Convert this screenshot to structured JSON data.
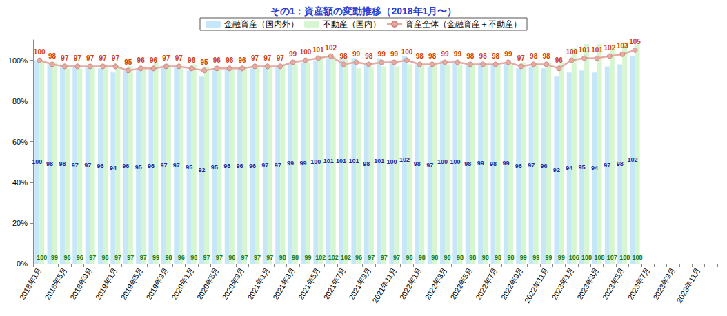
{
  "chart_data": {
    "type": "bar",
    "title": "その1：資産額の変動推移（2018年1月〜）",
    "categories": [
      "2018年1月",
      null,
      "2018年5月",
      null,
      "2018年9月",
      null,
      "2019年1月",
      null,
      "2019年5月",
      null,
      "2019年9月",
      null,
      "2020年1月",
      null,
      "2020年5月",
      null,
      "2020年9月",
      null,
      "2021年1月",
      null,
      "2021年3月",
      null,
      "2021年5月",
      null,
      "2021年7月",
      null,
      "2021年9月",
      null,
      "2021年11月",
      null,
      "2022年1月",
      null,
      "2022年3月",
      null,
      "2022年5月",
      null,
      "2022年7月",
      null,
      "2022年9月",
      null,
      "2022年11月",
      null,
      "2023年1月",
      null,
      "2023年3月",
      null,
      "2023年5月",
      null,
      "2023年7月",
      null,
      "2023年9月",
      null,
      "2023年11月",
      null
    ],
    "series": [
      {
        "name": "金融資産（国内外）",
        "type": "bar",
        "color": "#c6e7f8",
        "values": [
          100,
          98,
          98,
          97,
          97,
          96,
          94,
          96,
          95,
          96,
          97,
          97,
          95,
          92,
          95,
          96,
          96,
          96,
          97,
          97,
          99,
          99,
          100,
          101,
          101,
          101,
          98,
          101,
          100,
          102,
          98,
          97,
          100,
          100,
          98,
          99,
          98,
          99,
          96,
          97,
          96,
          92,
          94,
          95,
          94,
          97,
          98,
          102,
          null,
          null,
          null,
          null,
          null,
          null
        ]
      },
      {
        "name": "不動産（国内）",
        "type": "bar",
        "color": "#d5f6d0",
        "values": [
          100,
          99,
          96,
          96,
          97,
          98,
          97,
          97,
          97,
          99,
          98,
          96,
          98,
          97,
          97,
          96,
          97,
          97,
          97,
          98,
          98,
          99,
          102,
          102,
          102,
          96,
          97,
          97,
          97,
          98,
          98,
          98,
          98,
          98,
          98,
          98,
          98,
          98,
          99,
          99,
          99,
          99,
          106,
          108,
          108,
          107,
          108,
          108,
          null,
          null,
          null,
          null,
          null,
          null
        ]
      },
      {
        "name": "資産全体（金融資産＋不動産）",
        "type": "line",
        "color": "#e6aaa2",
        "marker": "circle",
        "line_style": "solid",
        "values": [
          100,
          98,
          97,
          97,
          97,
          97,
          97,
          95,
          96,
          96,
          97,
          97,
          96,
          95,
          96,
          96,
          96,
          97,
          97,
          97,
          99,
          100,
          101,
          102,
          98,
          99,
          98,
          99,
          99,
          100,
          98,
          98,
          99,
          99,
          98,
          98,
          98,
          99,
          97,
          98,
          98,
          96,
          100,
          101,
          101,
          102,
          103,
          105,
          null,
          null,
          null,
          null,
          null,
          null
        ]
      }
    ],
    "ylim": [
      0,
      110
    ],
    "yticks": [
      {
        "value": 0,
        "label": "0%"
      },
      {
        "value": 20,
        "label": "20%"
      },
      {
        "value": 40,
        "label": "40%"
      },
      {
        "value": 60,
        "label": "60%"
      },
      {
        "value": 80,
        "label": "80%"
      },
      {
        "value": 100,
        "label": "100%"
      }
    ],
    "grid": false,
    "legend": "top",
    "data_labels": true
  }
}
